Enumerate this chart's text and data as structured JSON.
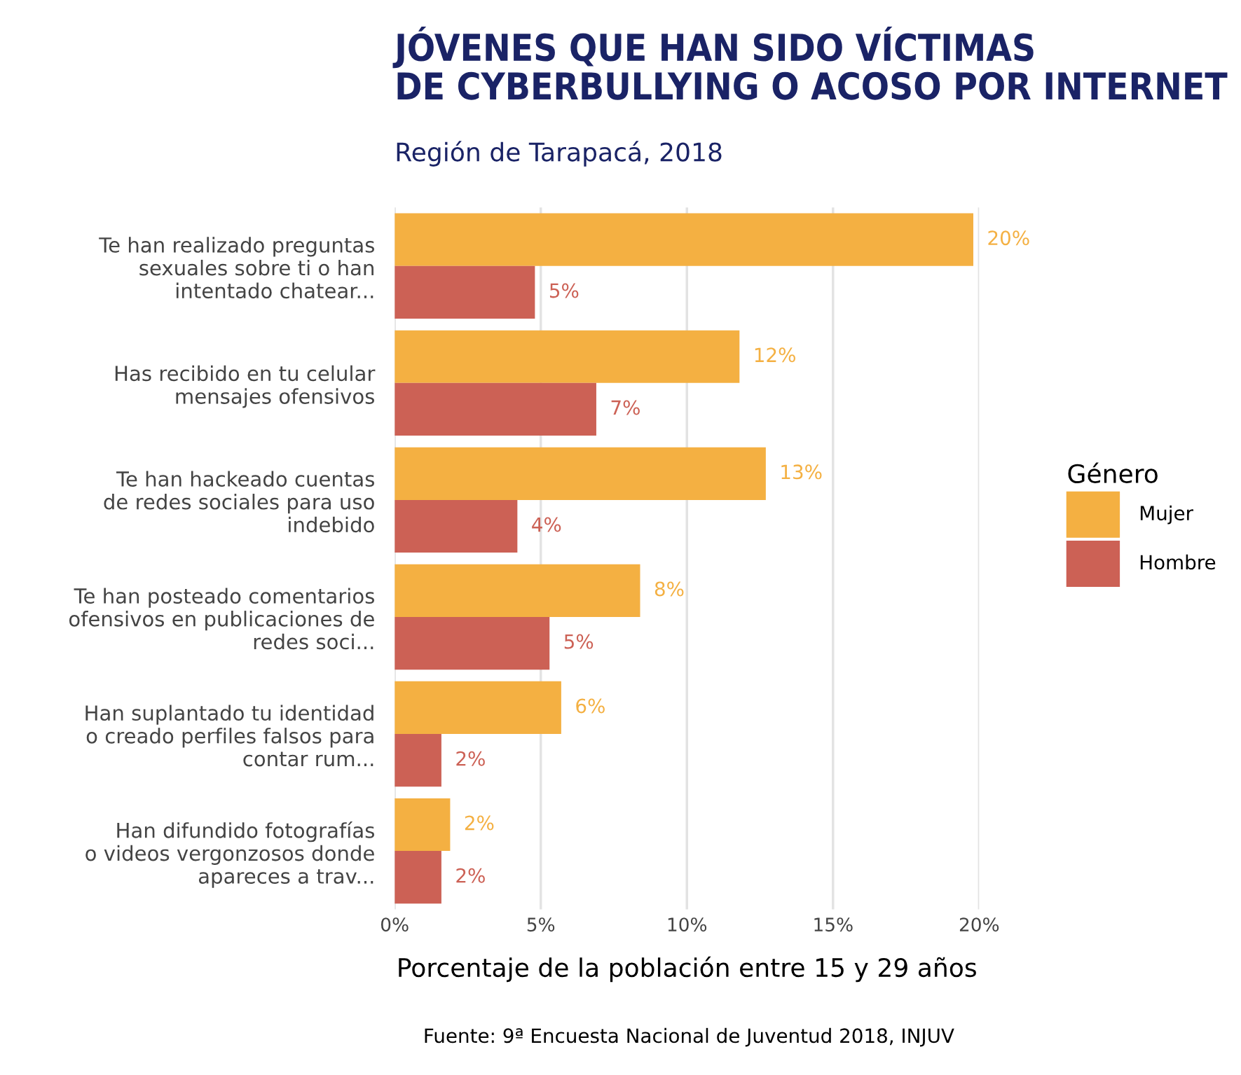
{
  "chart_data": {
    "type": "bar",
    "orientation": "horizontal",
    "title": "JÓVENES QUE HAN SIDO VÍCTIMAS\nDE CYBERBULLYING O ACOSO POR INTERNET",
    "subtitle": "Región de Tarapacá, 2018",
    "xlabel": "Porcentaje de la población entre 15 y 29 años",
    "legend_title": "Género",
    "annotations": [
      "Fuente: 9ª Encuesta Nacional de Juventud 2018, INJUV"
    ],
    "categories": [
      "Te han realizado preguntas\nsexuales sobre ti o han\nintentado chatear...",
      "Has recibido en tu celular\nmensajes ofensivos",
      "Te han hackeado cuentas\nde redes sociales para uso\nindebido",
      "Te han posteado comentarios\nofensivos en publicaciones de\nredes soci...",
      "Han suplantado tu identidad\no creado perfiles falsos para\ncontar rum...",
      "Han difundido fotografías\no videos vergonzosos donde\napareces a trav..."
    ],
    "series": [
      {
        "name": "Mujer",
        "color": "#f4b042",
        "values": [
          19.8,
          11.8,
          12.7,
          8.4,
          5.7,
          1.9
        ],
        "value_labels": [
          "20%",
          "12%",
          "13%",
          "8%",
          "6%",
          "2%"
        ]
      },
      {
        "name": "Hombre",
        "color": "#cc6155",
        "values": [
          4.8,
          6.9,
          4.2,
          5.3,
          1.6,
          1.6
        ],
        "value_labels": [
          "5%",
          "7%",
          "4%",
          "5%",
          "2%",
          "2%"
        ]
      }
    ],
    "xlim": [
      0,
      20
    ],
    "xticks": [
      {
        "value": 0,
        "label": "0%"
      },
      {
        "value": 5,
        "label": "5%"
      },
      {
        "value": 10,
        "label": "10%"
      },
      {
        "value": 15,
        "label": "15%"
      },
      {
        "value": 20,
        "label": "20%"
      }
    ],
    "grid": "x",
    "legend": "right"
  }
}
